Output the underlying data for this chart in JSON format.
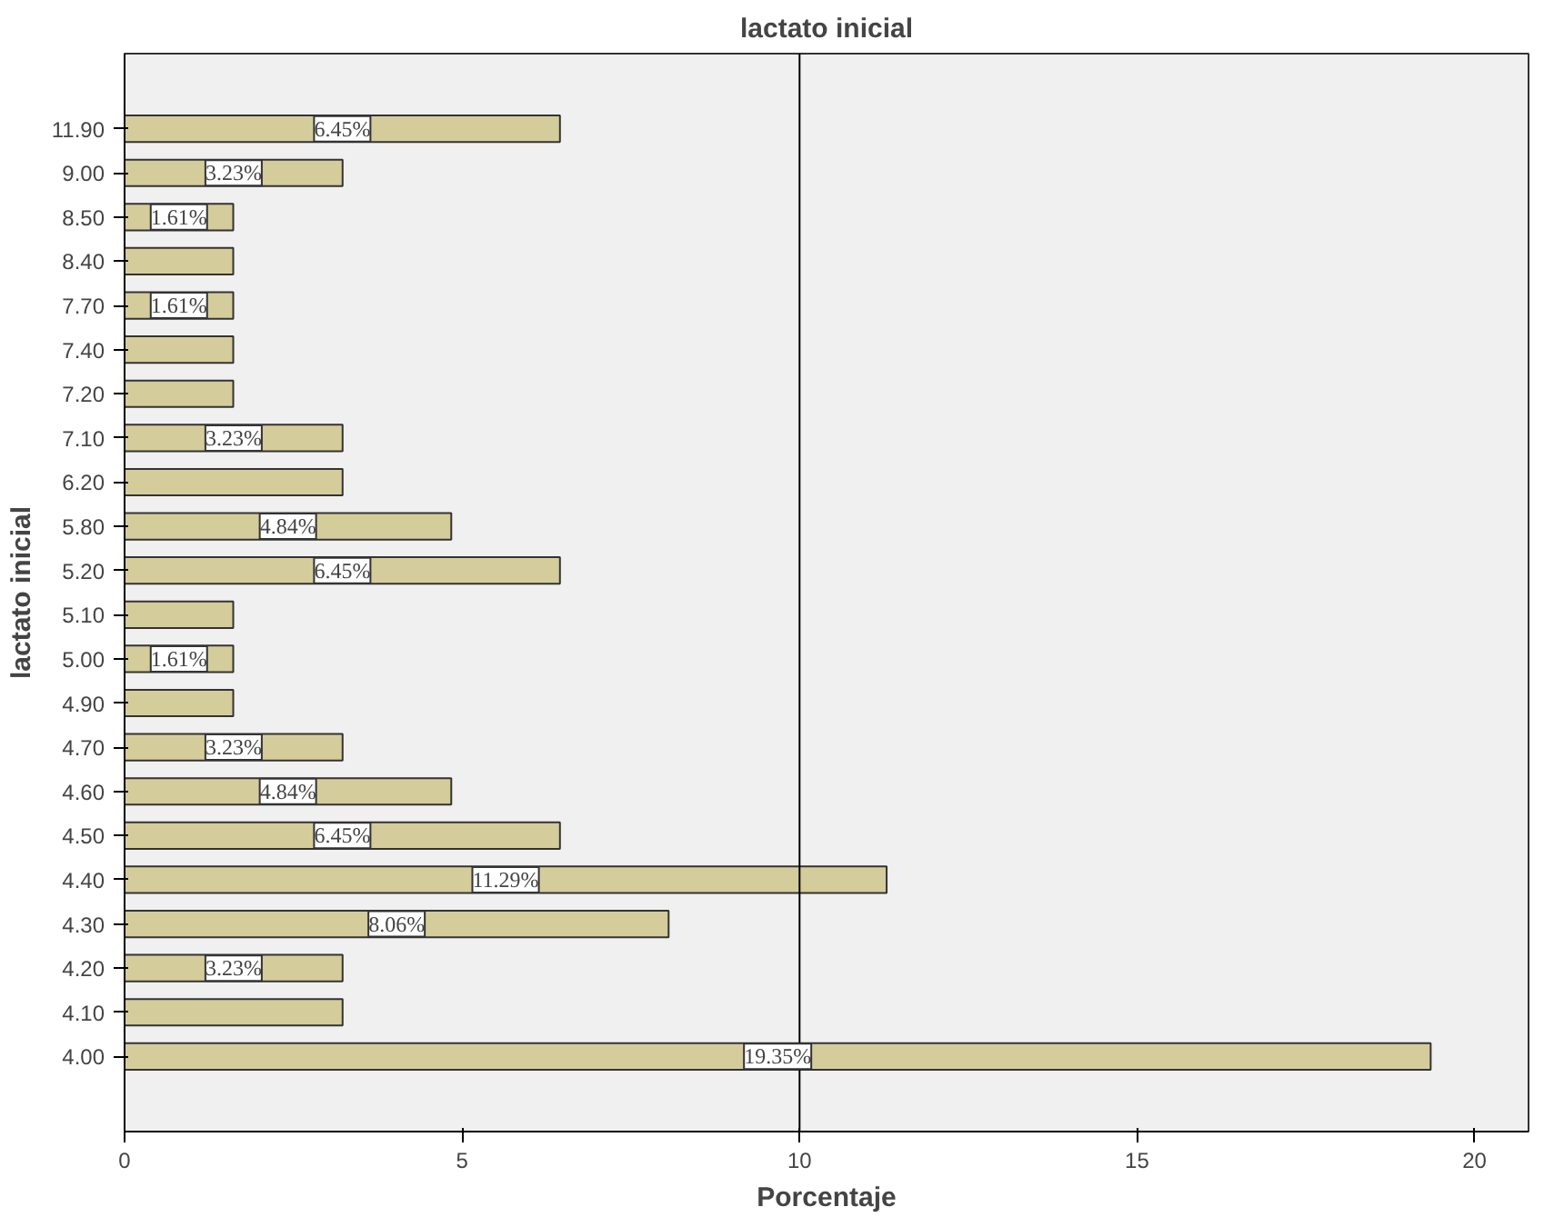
{
  "chart_data": {
    "type": "bar",
    "orientation": "horizontal",
    "title": "lactato inicial",
    "xlabel": "Porcentaje",
    "ylabel": "lactato inicial",
    "categories": [
      "11.90",
      "9.00",
      "8.50",
      "8.40",
      "7.70",
      "7.40",
      "7.20",
      "7.10",
      "6.20",
      "5.80",
      "5.20",
      "5.10",
      "5.00",
      "4.90",
      "4.70",
      "4.60",
      "4.50",
      "4.40",
      "4.30",
      "4.20",
      "4.10",
      "4.00"
    ],
    "values": [
      6.45,
      3.23,
      1.61,
      1.61,
      1.61,
      1.61,
      1.61,
      3.23,
      3.23,
      4.84,
      6.45,
      1.61,
      1.61,
      1.61,
      3.23,
      4.84,
      6.45,
      11.29,
      8.06,
      3.23,
      3.23,
      19.35
    ],
    "value_labels": [
      "6.45%",
      "3.23%",
      "1.61%",
      null,
      "1.61%",
      null,
      null,
      "3.23%",
      null,
      "4.84%",
      "6.45%",
      null,
      "1.61%",
      null,
      "3.23%",
      "4.84%",
      "6.45%",
      "11.29%",
      "8.06%",
      "3.23%",
      null,
      "19.35%"
    ],
    "color": "#d4cc9a",
    "xlim": [
      0,
      20.8
    ],
    "xticks": [
      0,
      5,
      10,
      15,
      20
    ],
    "grid": false,
    "ref_lines": [
      {
        "axis": "x",
        "value": 10,
        "color": "#000000"
      }
    ]
  }
}
